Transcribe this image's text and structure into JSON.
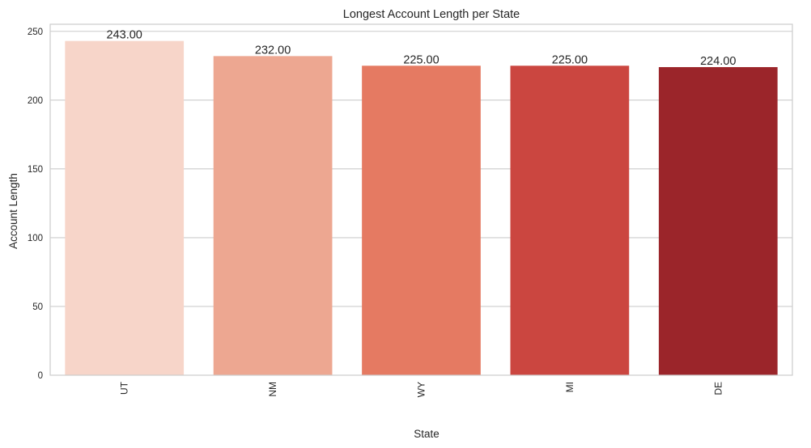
{
  "chart_data": {
    "type": "bar",
    "title": "Longest Account Length per State",
    "xlabel": "State",
    "ylabel": "Account Length",
    "categories": [
      "UT",
      "NM",
      "WY",
      "MI",
      "DE"
    ],
    "values": [
      243,
      232,
      225,
      225,
      224
    ],
    "value_labels": [
      "243.00",
      "232.00",
      "225.00",
      "225.00",
      "224.00"
    ],
    "colors": [
      "#f7d5c9",
      "#eda791",
      "#e57a62",
      "#cb4640",
      "#9b252a"
    ],
    "ylim": [
      0,
      255.15
    ],
    "yticks": [
      0,
      50,
      100,
      150,
      200,
      250
    ],
    "ytick_labels": [
      "0",
      "50",
      "100",
      "150",
      "200",
      "250"
    ],
    "grid": true,
    "legend": "none"
  }
}
